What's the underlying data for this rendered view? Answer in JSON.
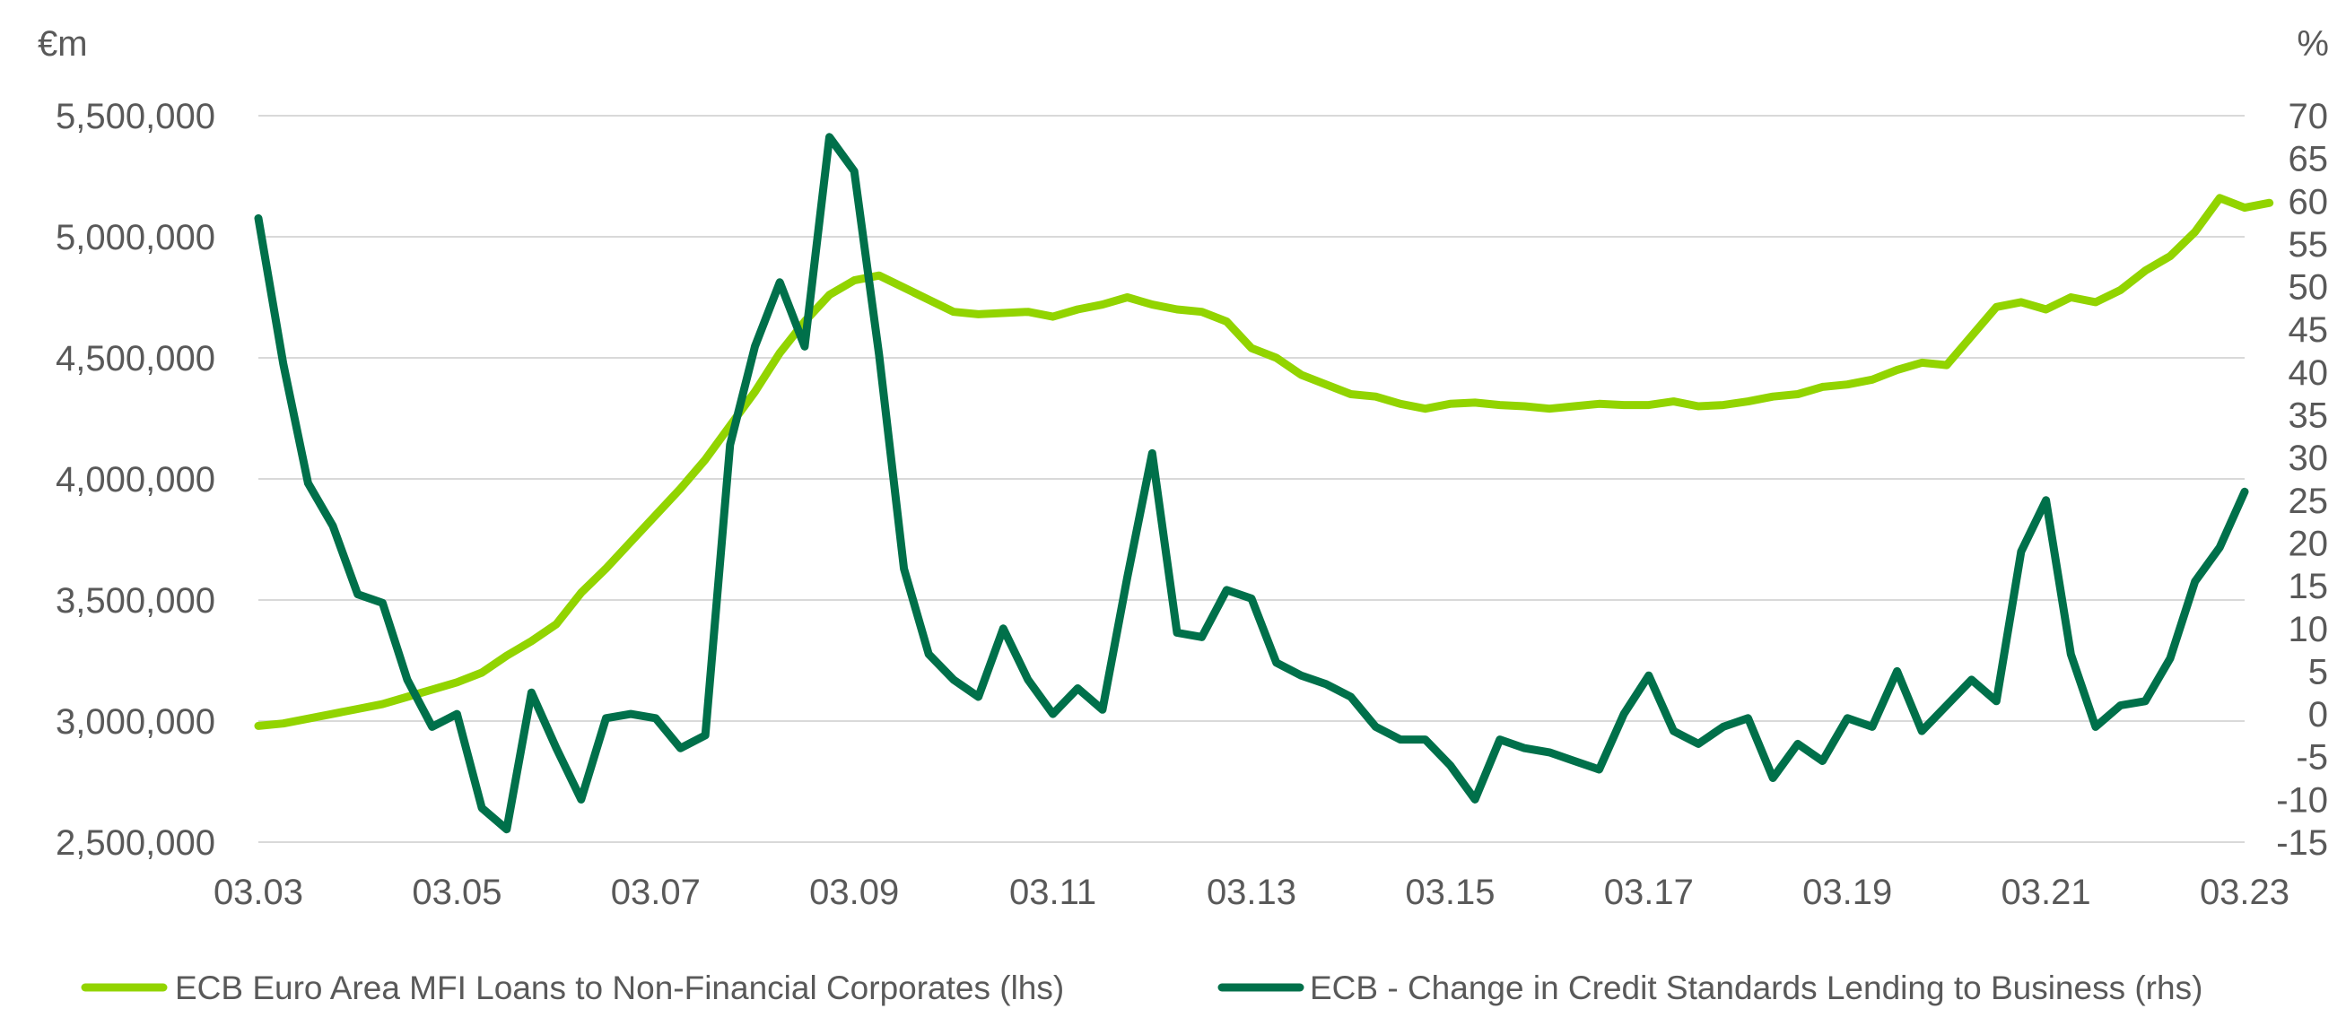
{
  "chart_data": {
    "type": "line",
    "title": "",
    "y_left_unit": "€m",
    "y_right_unit": "%",
    "x_range": [
      "03.03",
      "03.23"
    ],
    "x_ticks": [
      "03.03",
      "03.05",
      "03.07",
      "03.09",
      "03.11",
      "03.13",
      "03.15",
      "03.17",
      "03.19",
      "03.21",
      "03.23"
    ],
    "y_left": {
      "range": [
        2500000,
        5500000
      ],
      "ticks": [
        2500000,
        3000000,
        3500000,
        4000000,
        4500000,
        5000000,
        5500000
      ],
      "tick_labels": [
        "2,500,000",
        "3,000,000",
        "3,500,000",
        "4,000,000",
        "4,500,000",
        "5,000,000",
        "5,500,000"
      ]
    },
    "y_right": {
      "range": [
        -15,
        70
      ],
      "ticks": [
        -15,
        -10,
        -5,
        0,
        5,
        10,
        15,
        20,
        25,
        30,
        35,
        40,
        45,
        50,
        55,
        60,
        65,
        70
      ],
      "tick_labels": [
        "-15",
        "-10",
        "-5",
        "0",
        "5",
        "10",
        "15",
        "20",
        "25",
        "30",
        "35",
        "40",
        "45",
        "50",
        "55",
        "60",
        "65",
        "70"
      ]
    },
    "grid": true,
    "legend_position": "bottom",
    "series": [
      {
        "name": "ECB Euro Area MFI Loans to Non-Financial Corporates (lhs)",
        "axis": "left",
        "color": "#92d400",
        "points": [
          [
            "03.03",
            2980000
          ],
          [
            "06.03",
            2990000
          ],
          [
            "09.03",
            3010000
          ],
          [
            "12.03",
            3030000
          ],
          [
            "03.04",
            3050000
          ],
          [
            "06.04",
            3070000
          ],
          [
            "09.04",
            3100000
          ],
          [
            "12.04",
            3130000
          ],
          [
            "03.05",
            3160000
          ],
          [
            "06.05",
            3200000
          ],
          [
            "09.05",
            3270000
          ],
          [
            "12.05",
            3330000
          ],
          [
            "03.06",
            3400000
          ],
          [
            "06.06",
            3530000
          ],
          [
            "09.06",
            3630000
          ],
          [
            "12.06",
            3740000
          ],
          [
            "03.07",
            3850000
          ],
          [
            "06.07",
            3960000
          ],
          [
            "09.07",
            4080000
          ],
          [
            "12.07",
            4220000
          ],
          [
            "03.08",
            4360000
          ],
          [
            "06.08",
            4520000
          ],
          [
            "09.08",
            4650000
          ],
          [
            "12.08",
            4760000
          ],
          [
            "03.09",
            4820000
          ],
          [
            "06.09",
            4840000
          ],
          [
            "09.09",
            4790000
          ],
          [
            "12.09",
            4740000
          ],
          [
            "03.10",
            4690000
          ],
          [
            "06.10",
            4680000
          ],
          [
            "09.10",
            4685000
          ],
          [
            "12.10",
            4690000
          ],
          [
            "03.11",
            4670000
          ],
          [
            "06.11",
            4700000
          ],
          [
            "09.11",
            4720000
          ],
          [
            "12.11",
            4750000
          ],
          [
            "03.12",
            4720000
          ],
          [
            "06.12",
            4700000
          ],
          [
            "09.12",
            4690000
          ],
          [
            "12.12",
            4650000
          ],
          [
            "03.13",
            4540000
          ],
          [
            "06.13",
            4500000
          ],
          [
            "09.13",
            4430000
          ],
          [
            "12.13",
            4390000
          ],
          [
            "03.14",
            4350000
          ],
          [
            "06.14",
            4340000
          ],
          [
            "09.14",
            4310000
          ],
          [
            "12.14",
            4290000
          ],
          [
            "03.15",
            4310000
          ],
          [
            "06.15",
            4315000
          ],
          [
            "09.15",
            4305000
          ],
          [
            "12.15",
            4300000
          ],
          [
            "03.16",
            4290000
          ],
          [
            "06.16",
            4300000
          ],
          [
            "09.16",
            4310000
          ],
          [
            "12.16",
            4305000
          ],
          [
            "03.17",
            4305000
          ],
          [
            "06.17",
            4320000
          ],
          [
            "09.17",
            4300000
          ],
          [
            "12.17",
            4305000
          ],
          [
            "03.18",
            4320000
          ],
          [
            "06.18",
            4340000
          ],
          [
            "09.18",
            4350000
          ],
          [
            "12.18",
            4380000
          ],
          [
            "03.19",
            4390000
          ],
          [
            "06.19",
            4410000
          ],
          [
            "09.19",
            4450000
          ],
          [
            "12.19",
            4480000
          ],
          [
            "03.20",
            4470000
          ],
          [
            "06.20",
            4590000
          ],
          [
            "09.20",
            4710000
          ],
          [
            "12.20",
            4730000
          ],
          [
            "03.21",
            4700000
          ],
          [
            "06.21",
            4750000
          ],
          [
            "09.21",
            4730000
          ],
          [
            "12.21",
            4780000
          ],
          [
            "03.22",
            4860000
          ],
          [
            "06.22",
            4920000
          ],
          [
            "09.22",
            5020000
          ],
          [
            "12.22",
            5160000
          ],
          [
            "03.23",
            5120000
          ],
          [
            "06.23",
            5140000
          ]
        ]
      },
      {
        "name": "ECB - Change in Credit Standards Lending to Business (rhs)",
        "axis": "right",
        "color": "#00704a",
        "points": [
          [
            "03.03",
            58
          ],
          [
            "06.03",
            41
          ],
          [
            "09.03",
            27
          ],
          [
            "12.03",
            22
          ],
          [
            "03.04",
            14
          ],
          [
            "06.04",
            13
          ],
          [
            "09.04",
            4
          ],
          [
            "12.04",
            -1.5
          ],
          [
            "03.05",
            0
          ],
          [
            "06.05",
            -11
          ],
          [
            "09.05",
            -13.5
          ],
          [
            "12.05",
            2.5
          ],
          [
            "03.06",
            -4
          ],
          [
            "06.06",
            -10
          ],
          [
            "09.06",
            -0.5
          ],
          [
            "12.06",
            0
          ],
          [
            "03.07",
            -0.5
          ],
          [
            "06.07",
            -4
          ],
          [
            "09.07",
            -2.5
          ],
          [
            "12.07",
            31.5
          ],
          [
            "03.08",
            43
          ],
          [
            "06.08",
            50.5
          ],
          [
            "09.08",
            43
          ],
          [
            "12.08",
            67.5
          ],
          [
            "03.09",
            63.5
          ],
          [
            "06.09",
            42
          ],
          [
            "09.09",
            17
          ],
          [
            "12.09",
            7
          ],
          [
            "03.10",
            4
          ],
          [
            "06.10",
            2
          ],
          [
            "09.10",
            10
          ],
          [
            "12.10",
            4
          ],
          [
            "03.11",
            0
          ],
          [
            "06.11",
            3
          ],
          [
            "09.11",
            0.5
          ],
          [
            "12.11",
            16
          ],
          [
            "03.12",
            30.5
          ],
          [
            "06.12",
            9.5
          ],
          [
            "09.12",
            9
          ],
          [
            "12.12",
            14.5
          ],
          [
            "03.13",
            13.5
          ],
          [
            "06.13",
            6
          ],
          [
            "09.13",
            4.5
          ],
          [
            "12.13",
            3.5
          ],
          [
            "03.14",
            2
          ],
          [
            "06.14",
            -1.5
          ],
          [
            "09.14",
            -3
          ],
          [
            "12.14",
            -3
          ],
          [
            "03.15",
            -6
          ],
          [
            "06.15",
            -10
          ],
          [
            "09.15",
            -3
          ],
          [
            "12.15",
            -4
          ],
          [
            "03.16",
            -4.5
          ],
          [
            "06.16",
            -5.5
          ],
          [
            "09.16",
            -6.5
          ],
          [
            "12.16",
            0
          ],
          [
            "03.17",
            4.5
          ],
          [
            "06.17",
            -2
          ],
          [
            "09.17",
            -3.5
          ],
          [
            "12.17",
            -1.5
          ],
          [
            "03.18",
            -0.5
          ],
          [
            "06.18",
            -7.5
          ],
          [
            "09.18",
            -3.5
          ],
          [
            "12.18",
            -5.5
          ],
          [
            "03.19",
            -0.5
          ],
          [
            "06.19",
            -1.5
          ],
          [
            "09.19",
            5
          ],
          [
            "12.19",
            -2
          ],
          [
            "03.20",
            1
          ],
          [
            "06.20",
            4
          ],
          [
            "09.20",
            1.5
          ],
          [
            "12.20",
            19
          ],
          [
            "03.21",
            25
          ],
          [
            "06.21",
            7
          ],
          [
            "09.21",
            -1.5
          ],
          [
            "12.21",
            1
          ],
          [
            "03.22",
            1.5
          ],
          [
            "06.22",
            6.5
          ],
          [
            "09.22",
            15.5
          ],
          [
            "12.22",
            19.5
          ],
          [
            "03.23",
            26
          ]
        ]
      }
    ]
  }
}
